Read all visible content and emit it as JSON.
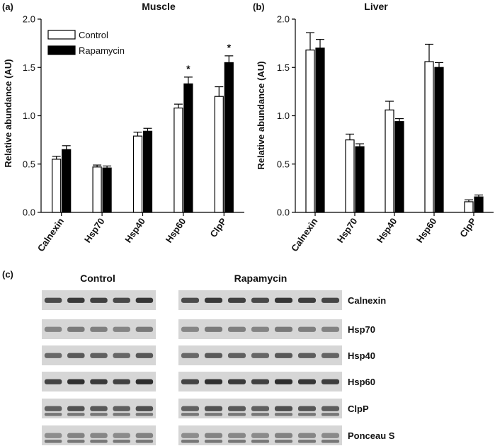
{
  "panels": [
    {
      "label": "(a)",
      "title": "Muscle"
    },
    {
      "label": "(b)",
      "title": "Liver"
    },
    {
      "label": "(c)"
    }
  ],
  "colors": {
    "control": "#ffffff",
    "rapamycin": "#000000",
    "blot_bg": "#d6d6d6",
    "band": "#2a2a2a"
  },
  "chart_data": [
    {
      "type": "bar",
      "title": "Muscle",
      "ylabel": "Relative abundance (AU)",
      "ylim": [
        0,
        2.0
      ],
      "yticks": [
        "0.0",
        "0.5",
        "1.0",
        "1.5",
        "2.0"
      ],
      "categories": [
        "Calnexin",
        "Hsp70",
        "Hsp40",
        "Hsp60",
        "ClpP"
      ],
      "series": [
        {
          "name": "Control",
          "values": [
            0.55,
            0.47,
            0.79,
            1.08,
            1.2
          ],
          "errors": [
            0.03,
            0.02,
            0.04,
            0.04,
            0.1
          ]
        },
        {
          "name": "Rapamycin",
          "values": [
            0.65,
            0.46,
            0.84,
            1.33,
            1.55
          ],
          "errors": [
            0.04,
            0.02,
            0.03,
            0.07,
            0.07
          ]
        }
      ],
      "significant": [
        "",
        "",
        "",
        "*",
        "*"
      ],
      "legend": "top-left"
    },
    {
      "type": "bar",
      "title": "Liver",
      "ylabel": "Relative abundance (AU)",
      "ylim": [
        0,
        2.0
      ],
      "yticks": [
        "0.0",
        "0.5",
        "1.0",
        "1.5",
        "2.0"
      ],
      "categories": [
        "Calnexin",
        "Hsp70",
        "Hsp40",
        "Hsp60",
        "ClpP"
      ],
      "series": [
        {
          "name": "Control",
          "values": [
            1.68,
            0.75,
            1.06,
            1.56,
            0.11
          ],
          "errors": [
            0.18,
            0.06,
            0.09,
            0.18,
            0.02
          ]
        },
        {
          "name": "Rapamycin",
          "values": [
            1.7,
            0.68,
            0.94,
            1.5,
            0.16
          ],
          "errors": [
            0.09,
            0.03,
            0.03,
            0.05,
            0.02
          ]
        }
      ]
    }
  ],
  "blot": {
    "group_labels": [
      "Control",
      "Rapamycin"
    ],
    "lanes": {
      "control": 5,
      "rapamycin": 7
    },
    "rows": [
      {
        "name": "Calnexin"
      },
      {
        "name": "Hsp70"
      },
      {
        "name": "Hsp40"
      },
      {
        "name": "Hsp60"
      },
      {
        "name": "ClpP"
      },
      {
        "name": "Ponceau S"
      }
    ]
  }
}
